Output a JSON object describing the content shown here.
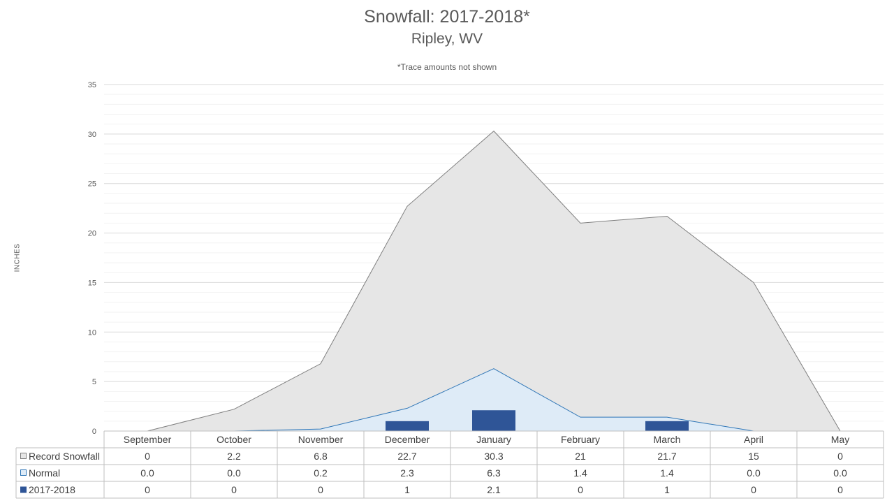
{
  "chart_data": {
    "type": "area",
    "title": "Snowfall: 2017-2018*",
    "subtitle": "Ripley, WV",
    "note": "*Trace amounts not shown",
    "ylabel": "INCHES",
    "ylim": [
      0,
      35
    ],
    "yticks": [
      0,
      5,
      10,
      15,
      20,
      25,
      30,
      35
    ],
    "categories": [
      "September",
      "October",
      "November",
      "December",
      "January",
      "February",
      "March",
      "April",
      "May"
    ],
    "series": [
      {
        "name": "Record Snowfall",
        "kind": "area",
        "fill": "#e6e6e6",
        "stroke": "#7f7f7f",
        "values": [
          0,
          2.2,
          6.8,
          22.7,
          30.3,
          21,
          21.7,
          15,
          0
        ],
        "labels": [
          "0",
          "2.2",
          "6.8",
          "22.7",
          "30.3",
          "21",
          "21.7",
          "15",
          "0"
        ]
      },
      {
        "name": "Normal",
        "kind": "area",
        "fill": "#deebf7",
        "stroke": "#2e75b6",
        "values": [
          0.0,
          0.0,
          0.2,
          2.3,
          6.3,
          1.4,
          1.4,
          0.0,
          0.0
        ],
        "labels": [
          "0.0",
          "0.0",
          "0.2",
          "2.3",
          "6.3",
          "1.4",
          "1.4",
          "0.0",
          "0.0"
        ]
      },
      {
        "name": "2017-2018",
        "kind": "bar",
        "fill": "#2f5597",
        "values": [
          0,
          0,
          0,
          1,
          2.1,
          0,
          1,
          0,
          0
        ],
        "labels": [
          "0",
          "0",
          "0",
          "1",
          "2.1",
          "0",
          "1",
          "0",
          "0"
        ]
      }
    ],
    "grid": true,
    "legend_placement": "data table"
  }
}
